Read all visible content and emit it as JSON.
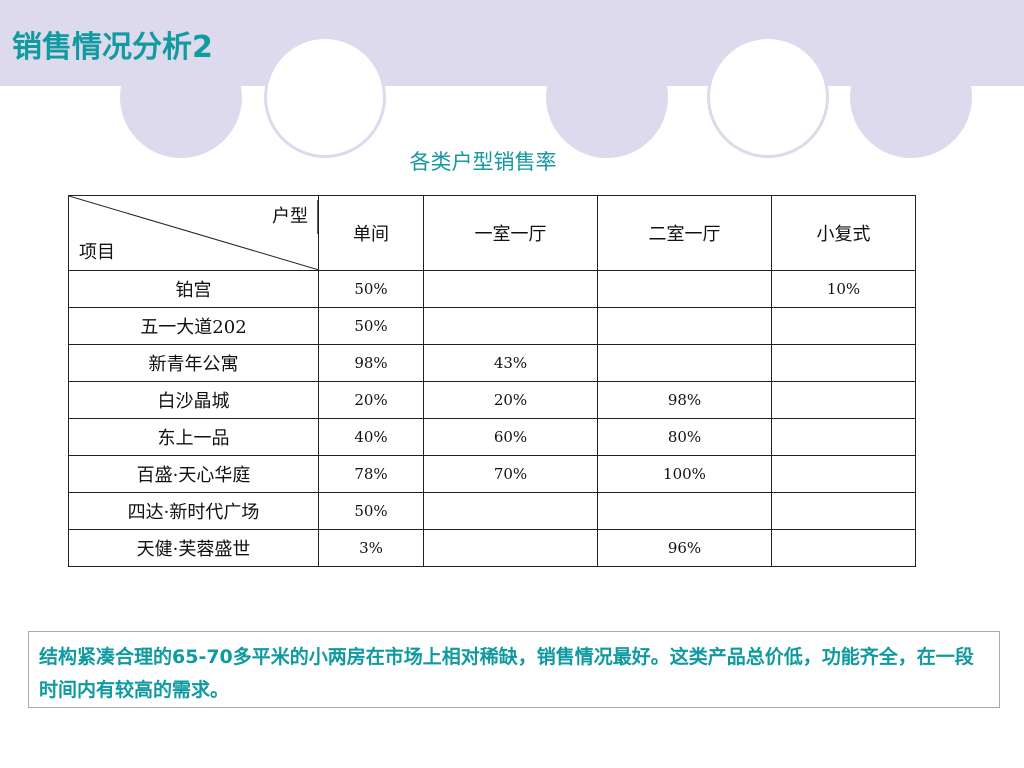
{
  "title": "销售情况分析2",
  "table": {
    "caption": "各类户型销售率",
    "corner_top": "户型",
    "corner_bottom": "项目",
    "columns": [
      "单间",
      "一室一厅",
      "二室一厅",
      "小复式"
    ],
    "rows": [
      {
        "name": "铂宫",
        "values": [
          "50%",
          "",
          "",
          "10%"
        ]
      },
      {
        "name": "五一大道202",
        "values": [
          "50%",
          "",
          "",
          ""
        ]
      },
      {
        "name": "新青年公寓",
        "values": [
          "98%",
          "43%",
          "",
          ""
        ]
      },
      {
        "name": "白沙晶城",
        "values": [
          "20%",
          "20%",
          "98%",
          ""
        ]
      },
      {
        "name": "东上一品",
        "values": [
          "40%",
          "60%",
          "80%",
          ""
        ]
      },
      {
        "name": "百盛·天心华庭",
        "values": [
          "78%",
          "70%",
          "100%",
          ""
        ]
      },
      {
        "name": "四达·新时代广场",
        "values": [
          "50%",
          "",
          "",
          ""
        ]
      },
      {
        "name": "天健·芙蓉盛世",
        "values": [
          "3%",
          "",
          "96%",
          ""
        ]
      }
    ]
  },
  "note": "结构紧凑合理的65-70多平米的小两房在市场上相对稀缺，销售情况最好。这类产品总价低，功能齐全，在一段时间内有较高的需求。",
  "colors": {
    "accent": "#119aa0",
    "band": "#dcdaec"
  }
}
